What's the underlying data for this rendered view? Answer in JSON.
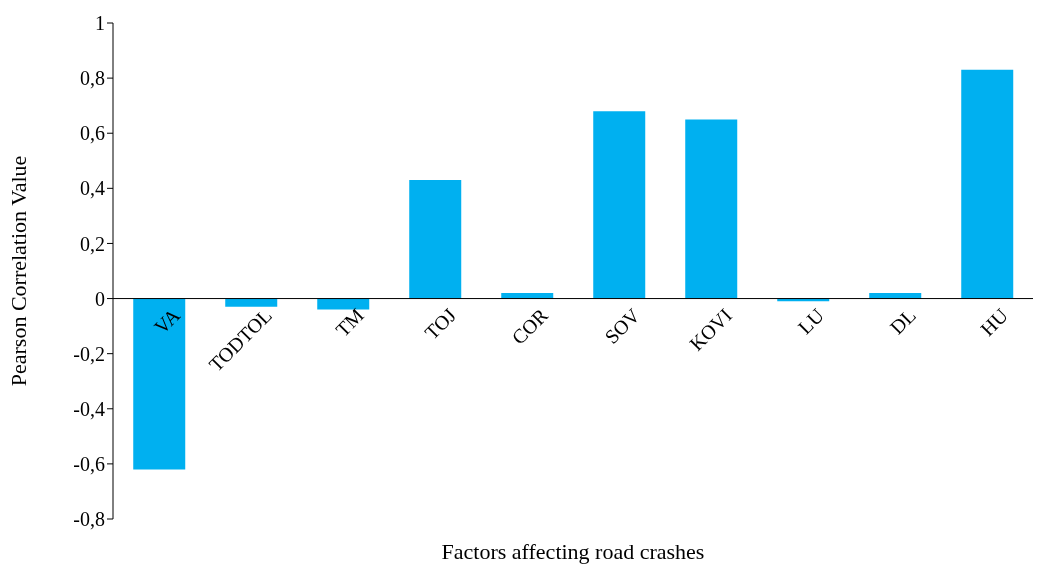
{
  "chart_data": {
    "type": "bar",
    "xlabel": "Factors affecting road crashes",
    "ylabel": "Pearson Correlation Value",
    "categories": [
      "VA",
      "TODTOL",
      "TM",
      "TOJ",
      "COR",
      "SOV",
      "KOVI",
      "LU",
      "DL",
      "HU"
    ],
    "values": [
      -0.62,
      -0.03,
      -0.04,
      0.43,
      0.02,
      0.68,
      0.65,
      -0.01,
      0.02,
      0.83
    ],
    "color": "#00b0f0",
    "ylim": [
      -0.8,
      1
    ],
    "yticks": [
      {
        "value": -0.8,
        "label": "-0,8"
      },
      {
        "value": -0.6,
        "label": "-0,6"
      },
      {
        "value": -0.4,
        "label": "-0,4"
      },
      {
        "value": -0.2,
        "label": "-0,2"
      },
      0,
      {
        "value": 0.2,
        "label": "0,2"
      },
      {
        "value": 0.4,
        "label": "0,4"
      },
      {
        "value": 0.6,
        "label": "0,6"
      },
      {
        "value": 0.8,
        "label": "0,8"
      },
      1
    ],
    "grid": false
  }
}
